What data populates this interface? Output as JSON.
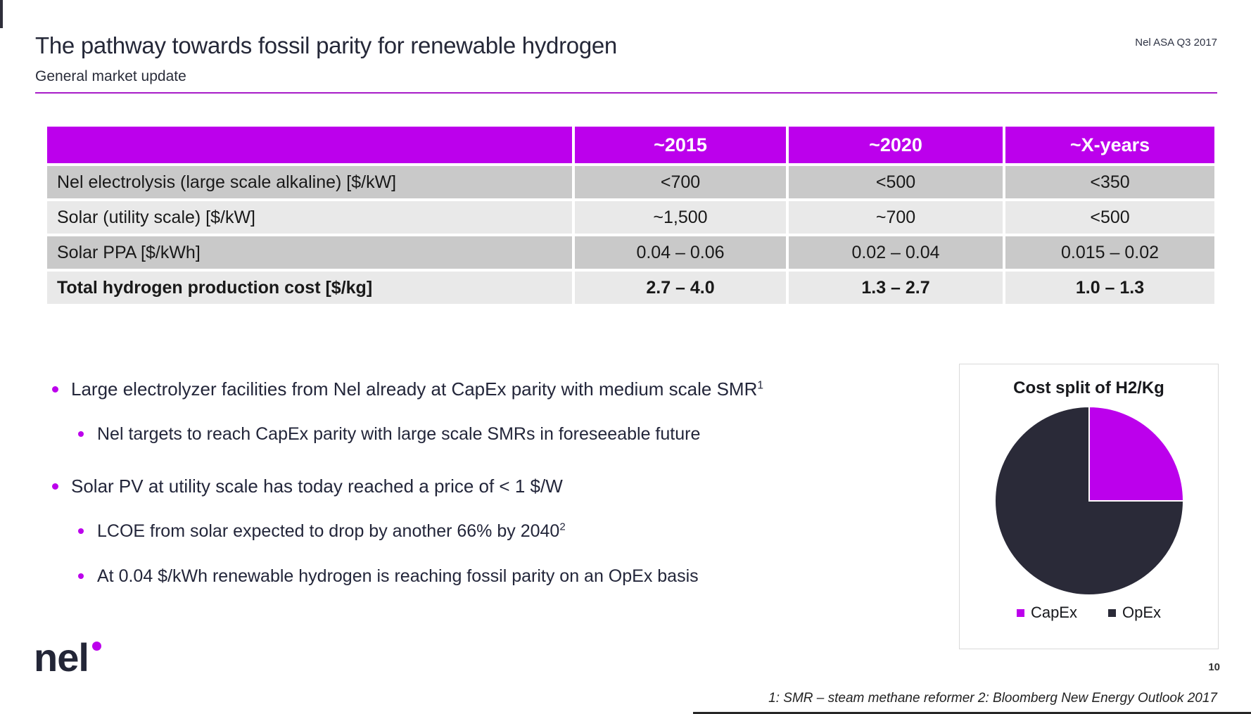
{
  "header": {
    "title": "The pathway towards fossil parity for renewable hydrogen",
    "subtitle": "General market update",
    "deck_label": "Nel ASA Q3 2017"
  },
  "colors": {
    "accent_magenta": "#bc00ec",
    "dark_navy": "#2a2a38",
    "row_dark": "#c9c9c9",
    "row_light": "#e9e9e9",
    "divider_purple": "#a81cc8"
  },
  "table": {
    "headers": [
      "",
      "~2015",
      "~2020",
      "~X-years"
    ],
    "rows": [
      {
        "label": "Nel electrolysis (large scale alkaline) [$/kW]",
        "values": [
          "<700",
          "<500",
          "<350"
        ],
        "emphasis": false
      },
      {
        "label": "Solar (utility scale) [$/kW]",
        "values": [
          "~1,500",
          "~700",
          "<500"
        ],
        "emphasis": false
      },
      {
        "label": "Solar PPA [$/kWh]",
        "values": [
          "0.04 – 0.06",
          "0.02 – 0.04",
          "0.015 – 0.02"
        ],
        "emphasis": false
      },
      {
        "label": "Total hydrogen production cost [$/kg]",
        "values": [
          "2.7 – 4.0",
          "1.3 – 2.7",
          "1.0 – 1.3"
        ],
        "emphasis": true
      }
    ]
  },
  "bullets": [
    {
      "level": 1,
      "text": "Large electrolyzer facilities from Nel already at CapEx parity with medium scale SMR",
      "sup": "1"
    },
    {
      "level": 2,
      "text": "Nel targets to reach CapEx parity with large scale SMRs in foreseeable future",
      "sup": ""
    },
    {
      "level": 1,
      "text": "Solar PV at utility scale has today reached a price of < 1 $/W",
      "sup": ""
    },
    {
      "level": 2,
      "text": "LCOE from solar expected to drop by another 66% by 2040",
      "sup": "2"
    },
    {
      "level": 2,
      "text": "At 0.04 $/kWh renewable hydrogen is reaching fossil parity on an OpEx basis",
      "sup": ""
    }
  ],
  "chart_data": {
    "type": "pie",
    "title": "Cost split of H2/Kg",
    "labels": [
      "CapEx",
      "OpEx"
    ],
    "values": [
      25,
      75
    ],
    "colors": [
      "#bc00ec",
      "#2a2a38"
    ],
    "legend_position": "bottom",
    "start_angle_deg": -90,
    "direction": "clockwise"
  },
  "footer": {
    "logo_text": "nel",
    "page_number": "10",
    "footnote": "1: SMR – steam methane reformer 2: Bloomberg New Energy Outlook 2017"
  }
}
